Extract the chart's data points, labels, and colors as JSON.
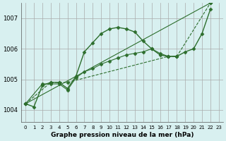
{
  "title": "Graphe pression niveau de la mer (hPa)",
  "bg_color": "#d8f0f0",
  "grid_color": "#aaaaaa",
  "line_color": "#2d6e2d",
  "x_ticks": [
    0,
    1,
    2,
    3,
    4,
    5,
    6,
    7,
    8,
    9,
    10,
    11,
    12,
    13,
    14,
    15,
    16,
    17,
    18,
    19,
    20,
    21,
    22,
    23
  ],
  "y_ticks": [
    1004,
    1005,
    1006,
    1007
  ],
  "ylim": [
    1003.6,
    1007.5
  ],
  "xlim": [
    -0.5,
    23.5
  ],
  "series": [
    [
      1004.2,
      1004.1,
      1004.8,
      1004.9,
      1004.9,
      1004.7,
      1005.1,
      1005.9,
      1006.2,
      1006.5,
      1006.65,
      1006.7,
      1006.65,
      1006.55,
      1006.25,
      1006.0,
      1005.8,
      1005.75,
      1005.75,
      1005.9,
      1006.0,
      1006.5,
      1007.3,
      null
    ],
    [
      1004.2,
      null,
      null,
      1004.9,
      1004.9,
      1004.9,
      null,
      null,
      null,
      null,
      null,
      null,
      null,
      null,
      null,
      null,
      null,
      1005.75,
      1005.75,
      null,
      null,
      null,
      null,
      1007.5
    ],
    [
      1004.2,
      null,
      null,
      null,
      null,
      null,
      null,
      null,
      null,
      null,
      null,
      null,
      null,
      null,
      null,
      null,
      null,
      null,
      null,
      null,
      null,
      null,
      null,
      1007.5
    ],
    [
      1004.2,
      null,
      1004.85,
      1004.85,
      1004.85,
      1004.65,
      1005.05,
      1005.25,
      1005.35,
      1005.5,
      1005.6,
      1005.7,
      1005.8,
      1005.85,
      1005.9,
      1006.0,
      1005.85,
      1005.75,
      1005.75,
      null,
      null,
      null,
      null,
      null
    ]
  ]
}
